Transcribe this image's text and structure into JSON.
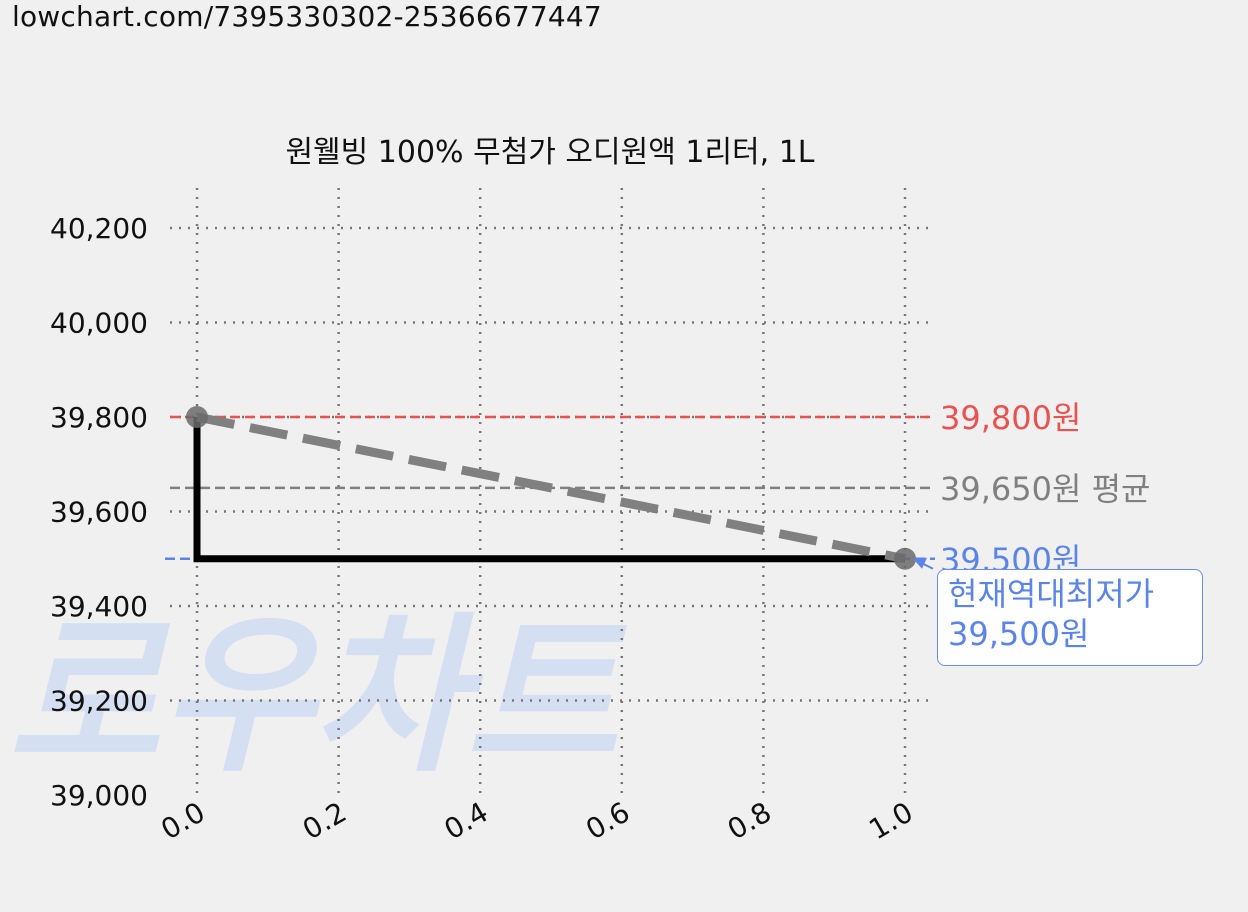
{
  "url": "lowchart.com/7395330302-25366677447",
  "watermark": "로우차트",
  "colors": {
    "background": "#f0f0f0",
    "max": "#e8524f",
    "avg": "#808080",
    "min": "#5b84e8",
    "step_line": "#000000",
    "trend_line": "#808080",
    "watermark": "#d5dff2"
  },
  "chart_data": {
    "type": "line",
    "title": "원웰빙 100% 무첨가 오디원액 1리터, 1L",
    "xlabel": "",
    "ylabel": "",
    "xlim": [
      0.0,
      1.0
    ],
    "ylim": [
      39000,
      40280
    ],
    "x_ticks": [
      "0.0",
      "0.2",
      "0.4",
      "0.6",
      "0.8",
      "1.0"
    ],
    "y_ticks": [
      "39,000",
      "39,200",
      "39,400",
      "39,600",
      "39,800",
      "40,000",
      "40,200"
    ],
    "grid": true,
    "series": [
      {
        "style": "step",
        "color": "#000000",
        "x": [
          0.0,
          0.0,
          1.0
        ],
        "y": [
          39800,
          39500,
          39500
        ]
      },
      {
        "style": "dashed",
        "color": "#808080",
        "x": [
          0.0,
          1.0
        ],
        "y": [
          39800,
          39500
        ]
      }
    ],
    "points": [
      {
        "x": 0.0,
        "y": 39800
      },
      {
        "x": 1.0,
        "y": 39500
      }
    ],
    "reference_lines": [
      {
        "key": "max",
        "value": 39800,
        "label": "39,800원",
        "color": "#e8524f"
      },
      {
        "key": "avg",
        "value": 39650,
        "label": "39,650원 평균",
        "color": "#808080"
      },
      {
        "key": "min",
        "value": 39500,
        "label": "39,500원",
        "color": "#5b84e8"
      }
    ],
    "annotation": {
      "line1": "현재역대최저가",
      "line2": "39,500원",
      "x": 1.0,
      "y": 39500
    }
  }
}
